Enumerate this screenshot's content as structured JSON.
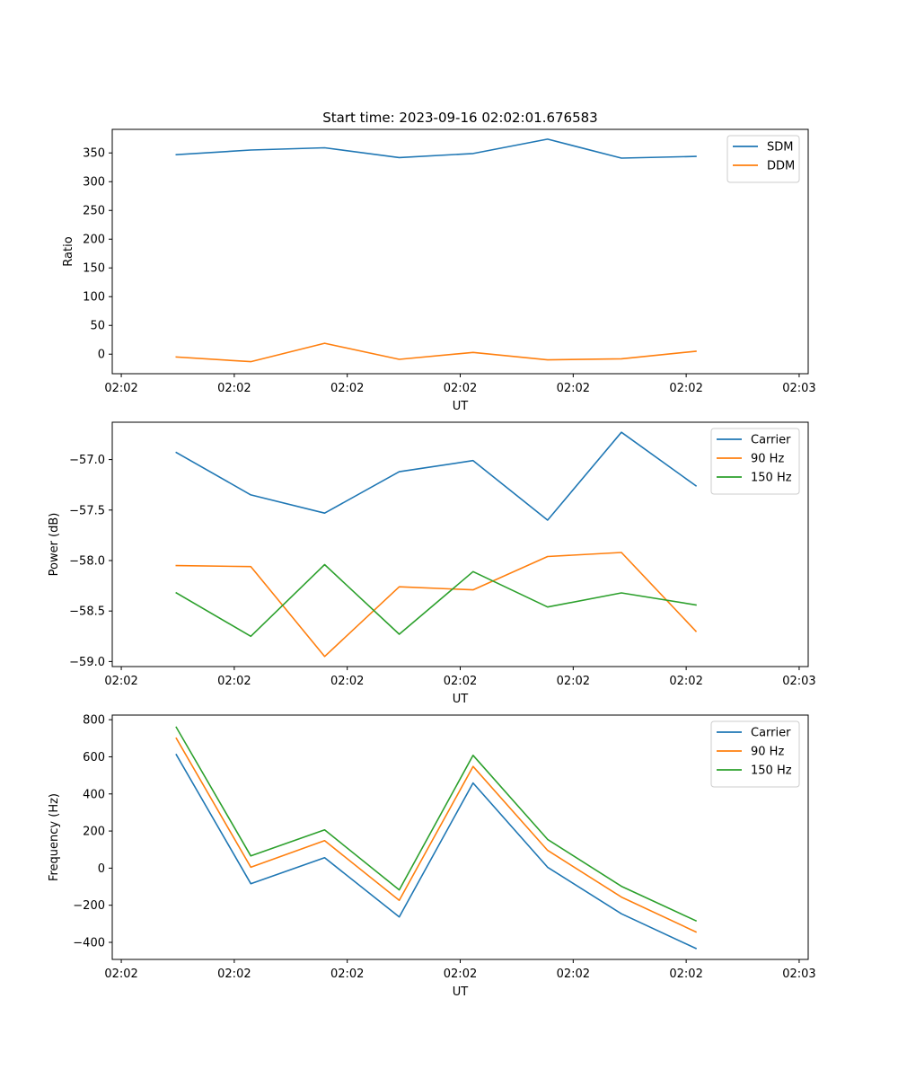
{
  "chart_data": [
    {
      "type": "line",
      "title": "Start time: 2023-09-16 02:02:01.676583",
      "xlabel": "UT",
      "ylabel": "Ratio",
      "xlim": [
        -0.12,
        9.12
      ],
      "x_tick_values": [
        0,
        1.5,
        3,
        4.5,
        6,
        7.5,
        9
      ],
      "x_tick_labels": [
        "02:02",
        "02:02",
        "02:02",
        "02:02",
        "02:02",
        "02:02",
        "02:03"
      ],
      "ylim": [
        -34,
        391
      ],
      "y_ticks": [
        0,
        50,
        100,
        150,
        200,
        250,
        300,
        350
      ],
      "x": [
        0.73,
        1.72,
        2.7,
        3.69,
        4.67,
        5.66,
        6.64,
        7.63
      ],
      "series": [
        {
          "name": "SDM",
          "color": "#1f77b4",
          "values": [
            347,
            355,
            359,
            342,
            349,
            374,
            341,
            344
          ]
        },
        {
          "name": "DDM",
          "color": "#ff7f0e",
          "values": [
            -5,
            -13,
            19,
            -9,
            3,
            -10,
            -8,
            5
          ]
        }
      ],
      "legend": "top-right"
    },
    {
      "type": "line",
      "title": "",
      "xlabel": "UT",
      "ylabel": "Power (dB)",
      "xlim": [
        -0.12,
        9.12
      ],
      "x_tick_values": [
        0,
        1.5,
        3,
        4.5,
        6,
        7.5,
        9
      ],
      "x_tick_labels": [
        "02:02",
        "02:02",
        "02:02",
        "02:02",
        "02:02",
        "02:02",
        "02:03"
      ],
      "ylim": [
        -59.05,
        -56.63
      ],
      "y_ticks": [
        -59.0,
        -58.5,
        -58.0,
        -57.5,
        -57.0
      ],
      "y_tick_labels": [
        "−59.0",
        "−58.5",
        "−58.0",
        "−57.5",
        "−57.0"
      ],
      "x": [
        0.73,
        1.72,
        2.7,
        3.69,
        4.67,
        5.66,
        6.64,
        7.63
      ],
      "series": [
        {
          "name": "Carrier",
          "color": "#1f77b4",
          "values": [
            -56.93,
            -57.35,
            -57.53,
            -57.12,
            -57.01,
            -57.6,
            -56.73,
            -57.26
          ]
        },
        {
          "name": "90 Hz",
          "color": "#ff7f0e",
          "values": [
            -58.05,
            -58.06,
            -58.95,
            -58.26,
            -58.29,
            -57.96,
            -57.92,
            -58.7
          ]
        },
        {
          "name": "150 Hz",
          "color": "#2ca02c",
          "values": [
            -58.32,
            -58.75,
            -58.04,
            -58.73,
            -58.11,
            -58.46,
            -58.32,
            -58.44
          ]
        }
      ],
      "legend": "top-right"
    },
    {
      "type": "line",
      "title": "",
      "xlabel": "UT",
      "ylabel": "Frequency (Hz)",
      "xlim": [
        -0.12,
        9.12
      ],
      "x_tick_values": [
        0,
        1.5,
        3,
        4.5,
        6,
        7.5,
        9
      ],
      "x_tick_labels": [
        "02:02",
        "02:02",
        "02:02",
        "02:02",
        "02:02",
        "02:02",
        "02:03"
      ],
      "ylim": [
        -492,
        825
      ],
      "y_ticks": [
        -400,
        -200,
        0,
        200,
        400,
        600,
        800
      ],
      "y_tick_labels": [
        "−400",
        "−200",
        "0",
        "200",
        "400",
        "600",
        "800"
      ],
      "x": [
        0.73,
        1.72,
        2.7,
        3.69,
        4.67,
        5.66,
        6.64,
        7.63
      ],
      "series": [
        {
          "name": "Carrier",
          "color": "#1f77b4",
          "values": [
            612,
            -84,
            56,
            -263,
            459,
            5,
            -246,
            -433
          ]
        },
        {
          "name": "90 Hz",
          "color": "#ff7f0e",
          "values": [
            700,
            5,
            148,
            -174,
            548,
            96,
            -156,
            -344
          ]
        },
        {
          "name": "150 Hz",
          "color": "#2ca02c",
          "values": [
            759,
            66,
            206,
            -117,
            608,
            155,
            -98,
            -284
          ]
        }
      ],
      "legend": "top-right"
    }
  ]
}
